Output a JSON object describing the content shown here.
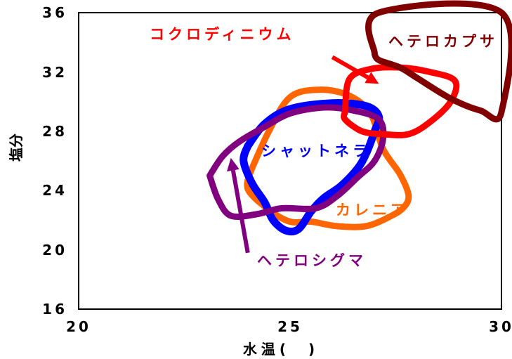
{
  "chart_data": {
    "type": "area",
    "xlabel": "水温(　)",
    "ylabel": "塩分",
    "xlim": [
      20,
      30
    ],
    "ylim": [
      16,
      36
    ],
    "x_ticks": [
      "20",
      "25",
      "30"
    ],
    "y_ticks": [
      "16",
      "20",
      "24",
      "28",
      "32",
      "36"
    ],
    "grid": false,
    "series": [
      {
        "name": "カレニア",
        "color": "#ff6600",
        "outline": [
          [
            24.1,
            25.5
          ],
          [
            24.5,
            28.0
          ],
          [
            25.0,
            30.3
          ],
          [
            25.7,
            30.8
          ],
          [
            26.4,
            30.4
          ],
          [
            26.9,
            29.2
          ],
          [
            27.2,
            26.8
          ],
          [
            27.6,
            25.1
          ],
          [
            27.8,
            23.7
          ],
          [
            27.7,
            22.9
          ],
          [
            27.4,
            22.3
          ],
          [
            26.8,
            21.6
          ],
          [
            26.1,
            21.6
          ],
          [
            25.5,
            21.9
          ],
          [
            25.0,
            21.9
          ],
          [
            24.5,
            22.7
          ],
          [
            24.0,
            24.1
          ],
          [
            24.1,
            25.5
          ]
        ]
      },
      {
        "name": "シャットネラ",
        "color": "#0000ff",
        "outline": [
          [
            24.0,
            27.0
          ],
          [
            24.4,
            28.5
          ],
          [
            25.0,
            29.5
          ],
          [
            26.0,
            29.9
          ],
          [
            26.8,
            29.7
          ],
          [
            27.1,
            29.0
          ],
          [
            27.0,
            28.0
          ],
          [
            26.8,
            26.5
          ],
          [
            26.6,
            25.5
          ],
          [
            26.2,
            24.3
          ],
          [
            25.8,
            23.5
          ],
          [
            25.5,
            22.6
          ],
          [
            25.2,
            21.4
          ],
          [
            24.9,
            21.3
          ],
          [
            24.6,
            22.0
          ],
          [
            24.4,
            23.2
          ],
          [
            24.1,
            24.5
          ],
          [
            23.9,
            26.0
          ],
          [
            24.0,
            27.0
          ]
        ]
      },
      {
        "name": "ヘテロシグマ",
        "color": "#800080",
        "outline": [
          [
            23.1,
            25.0
          ],
          [
            23.4,
            26.3
          ],
          [
            23.8,
            27.3
          ],
          [
            24.4,
            28.3
          ],
          [
            25.0,
            29.2
          ],
          [
            25.8,
            29.6
          ],
          [
            26.5,
            29.4
          ],
          [
            27.1,
            28.8
          ],
          [
            27.2,
            27.5
          ],
          [
            27.0,
            26.0
          ],
          [
            26.6,
            24.9
          ],
          [
            26.1,
            23.6
          ],
          [
            25.6,
            22.8
          ],
          [
            24.8,
            22.8
          ],
          [
            24.2,
            22.4
          ],
          [
            23.6,
            22.3
          ],
          [
            23.3,
            23.4
          ],
          [
            23.1,
            25.0
          ]
        ]
      },
      {
        "name": "コクロディニウム",
        "color": "#ff0000",
        "outline": [
          [
            26.3,
            29.3
          ],
          [
            26.4,
            31.5
          ],
          [
            26.9,
            32.2
          ],
          [
            27.6,
            32.3
          ],
          [
            28.3,
            32.0
          ],
          [
            28.9,
            31.4
          ],
          [
            28.8,
            30.0
          ],
          [
            28.3,
            28.6
          ],
          [
            27.8,
            27.8
          ],
          [
            27.2,
            27.8
          ],
          [
            26.7,
            28.0
          ],
          [
            26.3,
            28.8
          ],
          [
            26.3,
            29.3
          ]
        ]
      },
      {
        "name": "ヘテロカプサ",
        "color": "#800000",
        "outline": [
          [
            27.0,
            33.2
          ],
          [
            27.1,
            36.0
          ],
          [
            30.0,
            36.0
          ],
          [
            30.0,
            29.3
          ],
          [
            29.5,
            29.4
          ],
          [
            28.8,
            30.2
          ],
          [
            28.0,
            31.6
          ],
          [
            27.6,
            32.3
          ],
          [
            27.1,
            32.8
          ],
          [
            27.0,
            33.2
          ]
        ]
      }
    ],
    "annotations": [
      {
        "text": "コクロディニウム",
        "color": "#ff0000",
        "arrow_from": [
          26.0,
          33.0
        ],
        "arrow_to": [
          27.1,
          31.2
        ]
      },
      {
        "text": "ヘテロカプサ",
        "color": "#800000"
      },
      {
        "text": "シャットネラ",
        "color": "#0000ff"
      },
      {
        "text": "カレニア",
        "color": "#ff6600"
      },
      {
        "text": "ヘテロシグマ",
        "color": "#800080",
        "arrow_from": [
          24.0,
          19.8
        ],
        "arrow_to": [
          23.6,
          26.2
        ]
      }
    ]
  }
}
